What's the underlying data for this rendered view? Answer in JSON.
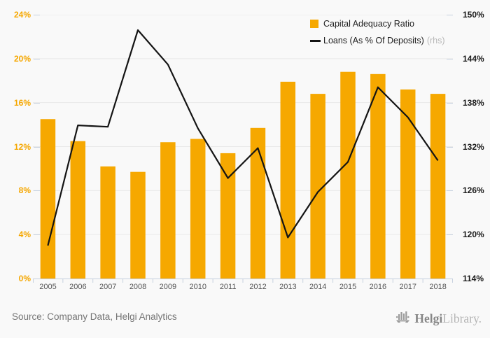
{
  "chart_data": {
    "type": "combo-bar-line",
    "title": "",
    "categories": [
      "2005",
      "2006",
      "2007",
      "2008",
      "2009",
      "2010",
      "2011",
      "2012",
      "2013",
      "2014",
      "2015",
      "2016",
      "2017",
      "2018"
    ],
    "series": [
      {
        "name": "Capital Adequacy Ratio",
        "type": "bar",
        "axis": "left",
        "unit": "%",
        "values": [
          14.5,
          12.5,
          10.2,
          9.7,
          12.4,
          12.7,
          11.4,
          13.7,
          17.9,
          16.8,
          18.8,
          18.6,
          17.2,
          16.8
        ]
      },
      {
        "name": "Loans (As % Of Deposits)",
        "type": "line",
        "axis": "right",
        "unit": "%",
        "values": [
          118.5,
          134.9,
          134.7,
          147.9,
          143.2,
          134.5,
          127.7,
          131.8,
          119.6,
          125.8,
          129.9,
          140.1,
          136.0,
          130.1
        ]
      }
    ],
    "left_axis": {
      "min": 0,
      "max": 24,
      "ticks": [
        "24%",
        "20%",
        "16%",
        "12%",
        "8%",
        "4%",
        "0%"
      ]
    },
    "right_axis": {
      "min": 114,
      "max": 150,
      "ticks": [
        "150%",
        "144%",
        "138%",
        "132%",
        "126%",
        "120%",
        "114%"
      ]
    },
    "legend": [
      {
        "label": "Capital Adequacy Ratio",
        "swatch": "bar"
      },
      {
        "label": "Loans (As % Of Deposits)",
        "suffix": "(rhs)",
        "swatch": "line"
      }
    ],
    "grid": true,
    "legend_position": "top-right"
  },
  "colors": {
    "bar": "#F6A800",
    "line": "#141414",
    "left_axis_labels": "#F5A700",
    "right_axis_labels": "#1A1A1A",
    "gridline": "#E9E9E9",
    "axis": "#C7D1DF",
    "background": "#F9F9F9"
  },
  "footer": {
    "source": "Source: Company Data, Helgi Analytics",
    "logo_bold": "Helgi",
    "logo_light": "Library."
  }
}
